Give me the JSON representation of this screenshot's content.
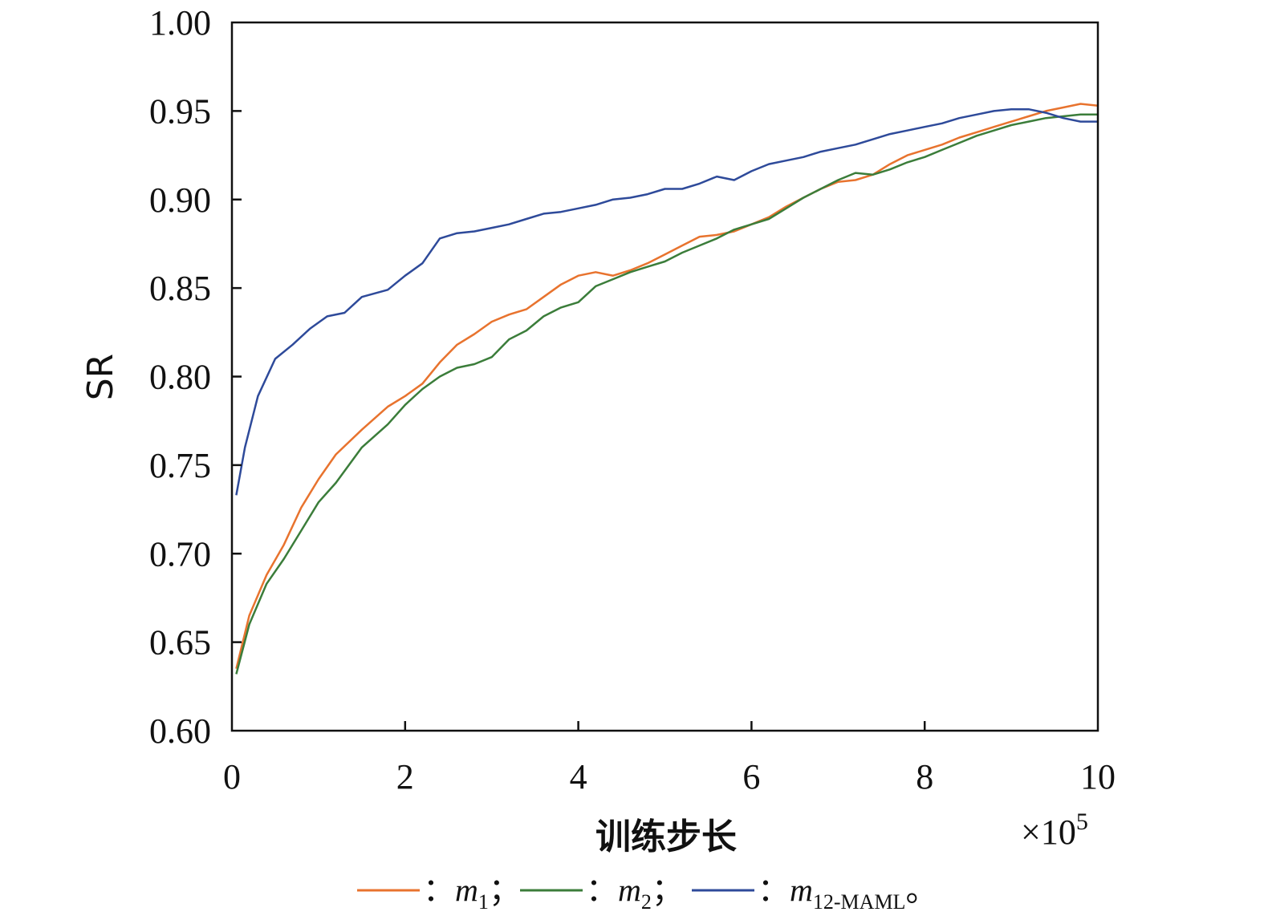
{
  "chart_data": {
    "type": "line",
    "xlabel": "训练步长",
    "ylabel": "SR",
    "x_multiplier": "×10",
    "x_multiplier_exp": "5",
    "xlim": [
      0,
      10
    ],
    "ylim": [
      0.6,
      1.0
    ],
    "x_ticks": [
      "0",
      "2",
      "4",
      "6",
      "8",
      "10"
    ],
    "y_ticks": [
      "0.60",
      "0.65",
      "0.70",
      "0.75",
      "0.80",
      "0.85",
      "0.90",
      "0.95",
      "1.00"
    ],
    "grid": false,
    "legend_position": "bottom",
    "legend_separator": "：",
    "series": [
      {
        "legend_label": "m",
        "legend_sub": "1",
        "legend_suffix": "；",
        "color": "#E8732E",
        "x": [
          0.05,
          0.2,
          0.4,
          0.6,
          0.8,
          1.0,
          1.2,
          1.5,
          1.8,
          2.0,
          2.2,
          2.4,
          2.6,
          2.8,
          3.0,
          3.2,
          3.4,
          3.6,
          3.8,
          4.0,
          4.2,
          4.4,
          4.6,
          4.8,
          5.0,
          5.2,
          5.4,
          5.6,
          5.8,
          6.0,
          6.2,
          6.4,
          6.6,
          6.8,
          7.0,
          7.2,
          7.4,
          7.6,
          7.8,
          8.0,
          8.2,
          8.4,
          8.6,
          8.8,
          9.0,
          9.2,
          9.4,
          9.6,
          9.8,
          10.0
        ],
        "y": [
          0.635,
          0.665,
          0.688,
          0.705,
          0.726,
          0.742,
          0.756,
          0.77,
          0.783,
          0.789,
          0.796,
          0.808,
          0.818,
          0.824,
          0.831,
          0.835,
          0.838,
          0.845,
          0.852,
          0.857,
          0.859,
          0.857,
          0.86,
          0.864,
          0.869,
          0.874,
          0.879,
          0.88,
          0.882,
          0.886,
          0.89,
          0.896,
          0.901,
          0.906,
          0.91,
          0.911,
          0.914,
          0.92,
          0.925,
          0.928,
          0.931,
          0.935,
          0.938,
          0.941,
          0.944,
          0.947,
          0.95,
          0.952,
          0.954,
          0.953
        ]
      },
      {
        "legend_label": "m",
        "legend_sub": "2",
        "legend_suffix": "；",
        "color": "#3B7D3A",
        "x": [
          0.05,
          0.2,
          0.4,
          0.6,
          0.8,
          1.0,
          1.2,
          1.5,
          1.8,
          2.0,
          2.2,
          2.4,
          2.6,
          2.8,
          3.0,
          3.2,
          3.4,
          3.6,
          3.8,
          4.0,
          4.2,
          4.4,
          4.6,
          4.8,
          5.0,
          5.2,
          5.4,
          5.6,
          5.8,
          6.0,
          6.2,
          6.4,
          6.6,
          6.8,
          7.0,
          7.2,
          7.4,
          7.6,
          7.8,
          8.0,
          8.2,
          8.4,
          8.6,
          8.8,
          9.0,
          9.2,
          9.4,
          9.6,
          9.8,
          10.0
        ],
        "y": [
          0.632,
          0.66,
          0.683,
          0.697,
          0.713,
          0.729,
          0.74,
          0.76,
          0.773,
          0.784,
          0.793,
          0.8,
          0.805,
          0.807,
          0.811,
          0.821,
          0.826,
          0.834,
          0.839,
          0.842,
          0.851,
          0.855,
          0.859,
          0.862,
          0.865,
          0.87,
          0.874,
          0.878,
          0.883,
          0.886,
          0.889,
          0.895,
          0.901,
          0.906,
          0.911,
          0.915,
          0.914,
          0.917,
          0.921,
          0.924,
          0.928,
          0.932,
          0.936,
          0.939,
          0.942,
          0.944,
          0.946,
          0.947,
          0.948,
          0.948
        ]
      },
      {
        "legend_label": "m",
        "legend_sub": "12-MAML",
        "legend_suffix": "。",
        "color": "#2E4A9A",
        "x": [
          0.05,
          0.15,
          0.3,
          0.5,
          0.7,
          0.9,
          1.1,
          1.3,
          1.5,
          1.8,
          2.0,
          2.2,
          2.4,
          2.6,
          2.8,
          3.0,
          3.2,
          3.4,
          3.6,
          3.8,
          4.0,
          4.2,
          4.4,
          4.6,
          4.8,
          5.0,
          5.2,
          5.4,
          5.6,
          5.8,
          6.0,
          6.2,
          6.4,
          6.6,
          6.8,
          7.0,
          7.2,
          7.4,
          7.6,
          7.8,
          8.0,
          8.2,
          8.4,
          8.6,
          8.8,
          9.0,
          9.2,
          9.4,
          9.6,
          9.8,
          10.0
        ],
        "y": [
          0.733,
          0.76,
          0.789,
          0.81,
          0.818,
          0.827,
          0.834,
          0.836,
          0.845,
          0.849,
          0.857,
          0.864,
          0.878,
          0.881,
          0.882,
          0.884,
          0.886,
          0.889,
          0.892,
          0.893,
          0.895,
          0.897,
          0.9,
          0.901,
          0.903,
          0.906,
          0.906,
          0.909,
          0.913,
          0.911,
          0.916,
          0.92,
          0.922,
          0.924,
          0.927,
          0.929,
          0.931,
          0.934,
          0.937,
          0.939,
          0.941,
          0.943,
          0.946,
          0.948,
          0.95,
          0.951,
          0.951,
          0.949,
          0.946,
          0.944,
          0.944
        ]
      }
    ]
  }
}
